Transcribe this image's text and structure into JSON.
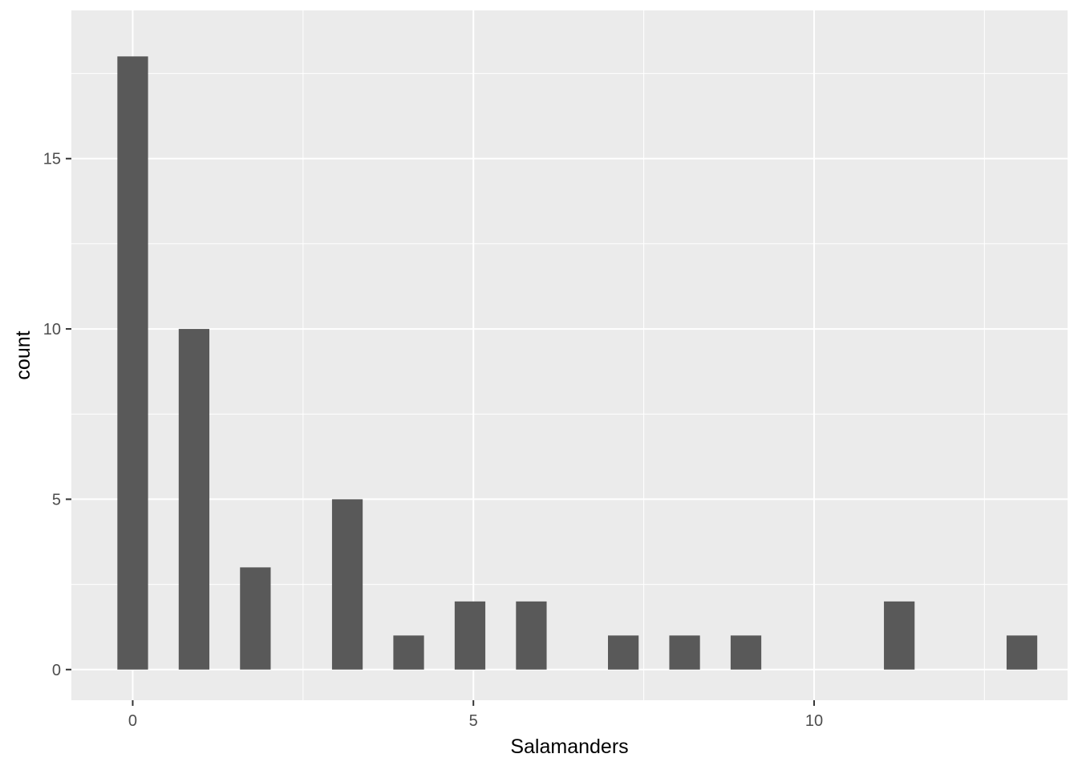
{
  "chart_data": {
    "type": "bar",
    "title": "",
    "xlabel": "Salamanders",
    "ylabel": "count",
    "x": [
      0,
      0.9,
      1.8,
      3.15,
      4.05,
      4.95,
      5.85,
      7.2,
      8.1,
      9.0,
      11.25,
      13.05
    ],
    "values": [
      18,
      10,
      3,
      5,
      1,
      2,
      2,
      1,
      1,
      1,
      2,
      1
    ],
    "bin_width": 0.45,
    "xlim": [
      -0.9,
      13.72
    ],
    "ylim": [
      -0.9,
      19.35
    ],
    "x_ticks": [
      0,
      5,
      10
    ],
    "x_tick_labels": [
      "0",
      "5",
      "10"
    ],
    "y_ticks": [
      0,
      5,
      10,
      15
    ],
    "y_tick_labels": [
      "0",
      "5",
      "10",
      "15"
    ],
    "grid": true,
    "legend": "none",
    "colors": {
      "panel_background": "#ebebeb",
      "grid_major": "#ffffff",
      "bar_fill": "#595959",
      "tick_color": "#333333",
      "tick_label_color": "#4d4d4d",
      "title_color": "#000000"
    }
  }
}
